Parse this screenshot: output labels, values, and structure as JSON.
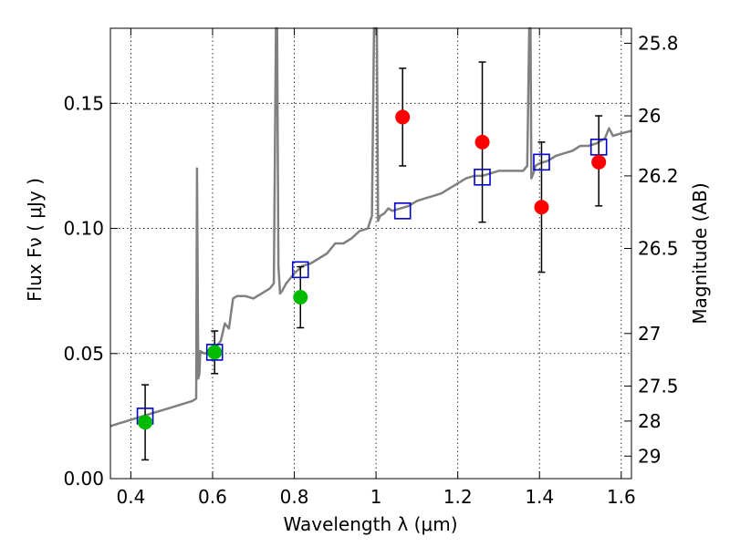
{
  "chart_data": {
    "type": "scatter",
    "title": "",
    "xlabel": "Wavelength  λ (μm)",
    "ylabel_left": "Flux  Fν  ( μJy )",
    "ylabel_right": "Magnitude (AB)",
    "xlim": [
      0.35,
      1.625
    ],
    "ylim": [
      0.0,
      0.18
    ],
    "grid": true,
    "x_ticks": [
      0.4,
      0.6,
      0.8,
      1.0,
      1.2,
      1.4,
      1.6
    ],
    "x_tick_labels": [
      "0.4",
      "0.6",
      "0.8",
      "1",
      "1.2",
      "1.4",
      "1.6"
    ],
    "y_ticks": [
      0.0,
      0.05,
      0.1,
      0.15
    ],
    "y_tick_labels": [
      "0.00",
      "0.05",
      "0.10",
      "0.15"
    ],
    "right_axis": {
      "ticks": [
        {
          "label": "25.8",
          "flux": 0.174
        },
        {
          "label": "26",
          "flux": 0.145
        },
        {
          "label": "26.2",
          "flux": 0.121
        },
        {
          "label": "26.5",
          "flux": 0.092
        },
        {
          "label": "27",
          "flux": 0.058
        },
        {
          "label": "27.5",
          "flux": 0.037
        },
        {
          "label": "28",
          "flux": 0.023
        },
        {
          "label": "29",
          "flux": 0.009
        }
      ]
    },
    "series": [
      {
        "name": "model spectrum",
        "kind": "line",
        "color": "#808080",
        "x": [
          0.35,
          0.37,
          0.39,
          0.41,
          0.43,
          0.45,
          0.47,
          0.49,
          0.51,
          0.53,
          0.55,
          0.56,
          0.562,
          0.565,
          0.568,
          0.57,
          0.58,
          0.6,
          0.62,
          0.63,
          0.64,
          0.65,
          0.66,
          0.68,
          0.7,
          0.72,
          0.74,
          0.75,
          0.755,
          0.758,
          0.761,
          0.765,
          0.77,
          0.78,
          0.8,
          0.82,
          0.84,
          0.86,
          0.88,
          0.9,
          0.92,
          0.94,
          0.96,
          0.98,
          0.99,
          0.995,
          1.0,
          1.002,
          1.005,
          1.01,
          1.02,
          1.03,
          1.04,
          1.06,
          1.08,
          1.1,
          1.12,
          1.14,
          1.16,
          1.18,
          1.2,
          1.22,
          1.24,
          1.26,
          1.28,
          1.3,
          1.32,
          1.34,
          1.36,
          1.37,
          1.375,
          1.378,
          1.38,
          1.385,
          1.39,
          1.4,
          1.42,
          1.44,
          1.46,
          1.48,
          1.5,
          1.52,
          1.54,
          1.56,
          1.57,
          1.58,
          1.6,
          1.625
        ],
        "y": [
          0.021,
          0.022,
          0.023,
          0.024,
          0.025,
          0.026,
          0.027,
          0.028,
          0.029,
          0.03,
          0.031,
          0.032,
          0.124,
          0.04,
          0.042,
          0.051,
          0.05,
          0.051,
          0.055,
          0.062,
          0.06,
          0.072,
          0.073,
          0.073,
          0.072,
          0.074,
          0.076,
          0.078,
          0.18,
          0.18,
          0.085,
          0.074,
          0.075,
          0.078,
          0.082,
          0.085,
          0.086,
          0.088,
          0.09,
          0.094,
          0.094,
          0.096,
          0.099,
          0.1,
          0.105,
          0.18,
          0.18,
          0.18,
          0.103,
          0.105,
          0.106,
          0.108,
          0.107,
          0.108,
          0.109,
          0.111,
          0.112,
          0.113,
          0.114,
          0.116,
          0.118,
          0.12,
          0.121,
          0.121,
          0.122,
          0.123,
          0.123,
          0.123,
          0.123,
          0.125,
          0.18,
          0.18,
          0.12,
          0.122,
          0.125,
          0.126,
          0.127,
          0.129,
          0.13,
          0.131,
          0.133,
          0.133,
          0.134,
          0.136,
          0.14,
          0.137,
          0.138,
          0.139
        ]
      },
      {
        "name": "green detections",
        "kind": "points",
        "color": "#00bb00",
        "x": [
          0.435,
          0.605,
          0.815
        ],
        "y": [
          0.0225,
          0.0505,
          0.0725
        ],
        "err_low": [
          0.015,
          0.0085,
          0.0122
        ],
        "err_high": [
          0.015,
          0.0085,
          0.0122
        ]
      },
      {
        "name": "red detections",
        "kind": "points",
        "color": "#ff0000",
        "x": [
          1.065,
          1.26,
          1.405,
          1.545
        ],
        "y": [
          0.1445,
          0.1345,
          0.1085,
          0.1265
        ],
        "err_low": [
          0.0195,
          0.032,
          0.026,
          0.0175
        ],
        "err_high": [
          0.0195,
          0.032,
          0.026,
          0.0185
        ]
      },
      {
        "name": "model photometry",
        "kind": "squares",
        "color": "#0000cc",
        "x": [
          0.435,
          0.605,
          0.815,
          1.065,
          1.26,
          1.405,
          1.545
        ],
        "y": [
          0.025,
          0.0505,
          0.0835,
          0.107,
          0.1205,
          0.1265,
          0.1325
        ]
      }
    ]
  }
}
